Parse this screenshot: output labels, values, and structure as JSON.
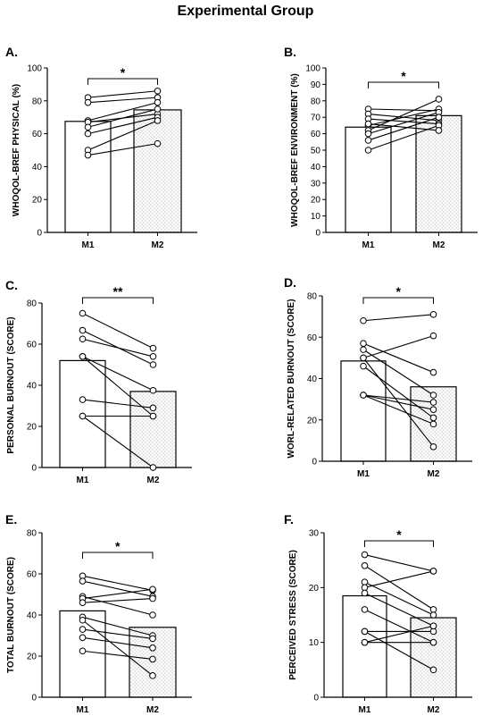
{
  "figure_title": "Experimental Group",
  "chart_data": [
    {
      "panel": "A.",
      "type": "bar",
      "categories": [
        "M1",
        "M2"
      ],
      "bar_values": [
        67.5,
        74.5
      ],
      "ylabel": "WHOQOL-BREF PHYSICAL (%)",
      "ylim": [
        0,
        100
      ],
      "yticks": [
        0,
        20,
        40,
        60,
        80,
        100
      ],
      "significance": "*",
      "paired": [
        [
          82,
          86
        ],
        [
          79,
          82
        ],
        [
          68,
          79
        ],
        [
          67,
          72
        ],
        [
          64,
          75
        ],
        [
          60,
          70
        ],
        [
          50,
          68
        ],
        [
          47,
          54
        ]
      ]
    },
    {
      "panel": "B.",
      "type": "bar",
      "categories": [
        "M1",
        "M2"
      ],
      "bar_values": [
        64,
        71
      ],
      "ylabel": "WHOQOL-BREF ENVIRONMENT (%)",
      "ylim": [
        0,
        100
      ],
      "yticks": [
        0,
        10,
        20,
        30,
        40,
        50,
        60,
        70,
        80,
        90,
        100
      ],
      "significance": "*",
      "paired": [
        [
          75,
          74
        ],
        [
          72,
          68
        ],
        [
          69,
          66
        ],
        [
          65,
          75
        ],
        [
          62,
          81
        ],
        [
          60,
          73
        ],
        [
          56,
          70
        ],
        [
          50,
          65
        ],
        [
          66,
          62
        ]
      ]
    },
    {
      "panel": "C.",
      "type": "bar",
      "categories": [
        "M1",
        "M2"
      ],
      "bar_values": [
        52,
        37
      ],
      "ylabel": "PERSONAL BURNOUT (SCORE)",
      "ylim": [
        0,
        80
      ],
      "yticks": [
        0,
        20,
        40,
        60,
        80
      ],
      "significance": "**",
      "paired": [
        [
          75,
          58
        ],
        [
          66.7,
          50
        ],
        [
          62.5,
          54
        ],
        [
          54,
          37.5
        ],
        [
          54,
          25
        ],
        [
          33,
          29
        ],
        [
          25,
          25
        ],
        [
          25,
          0
        ]
      ]
    },
    {
      "panel": "D.",
      "type": "bar",
      "categories": [
        "M1",
        "M2"
      ],
      "bar_values": [
        48.5,
        36
      ],
      "ylabel": "WORL-RELATED BURNOUT (SCORE)",
      "ylim": [
        0,
        80
      ],
      "yticks": [
        0,
        20,
        40,
        60,
        80
      ],
      "significance": "*",
      "paired": [
        [
          68,
          71
        ],
        [
          57,
          43
        ],
        [
          54,
          32
        ],
        [
          50,
          60.7
        ],
        [
          46,
          21
        ],
        [
          32,
          25
        ],
        [
          32,
          28.5
        ],
        [
          32,
          18
        ],
        [
          50,
          7
        ]
      ]
    },
    {
      "panel": "E.",
      "type": "bar",
      "categories": [
        "M1",
        "M2"
      ],
      "bar_values": [
        42,
        34
      ],
      "ylabel": "TOTAL BURNOUT (SCORE)",
      "ylim": [
        0,
        80
      ],
      "yticks": [
        0,
        20,
        40,
        60,
        80
      ],
      "significance": "*",
      "paired": [
        [
          59,
          52
        ],
        [
          56.5,
          49
        ],
        [
          49,
          40
        ],
        [
          48,
          52.5
        ],
        [
          46,
          48
        ],
        [
          39,
          30
        ],
        [
          33,
          28.5
        ],
        [
          29,
          24
        ],
        [
          22.5,
          18.5
        ],
        [
          37.5,
          10.5
        ]
      ]
    },
    {
      "panel": "F.",
      "type": "bar",
      "categories": [
        "M1",
        "M2"
      ],
      "bar_values": [
        18.5,
        14.5
      ],
      "ylabel": "PERCEIVED STRESS (SCORE)",
      "ylim": [
        0,
        30
      ],
      "yticks": [
        0,
        10,
        20,
        30
      ],
      "significance": "*",
      "paired": [
        [
          26,
          23
        ],
        [
          24,
          16
        ],
        [
          21,
          15
        ],
        [
          20,
          23
        ],
        [
          19,
          13
        ],
        [
          16,
          10
        ],
        [
          12,
          12
        ],
        [
          12,
          5
        ],
        [
          10,
          10
        ],
        [
          10,
          13
        ]
      ]
    }
  ]
}
